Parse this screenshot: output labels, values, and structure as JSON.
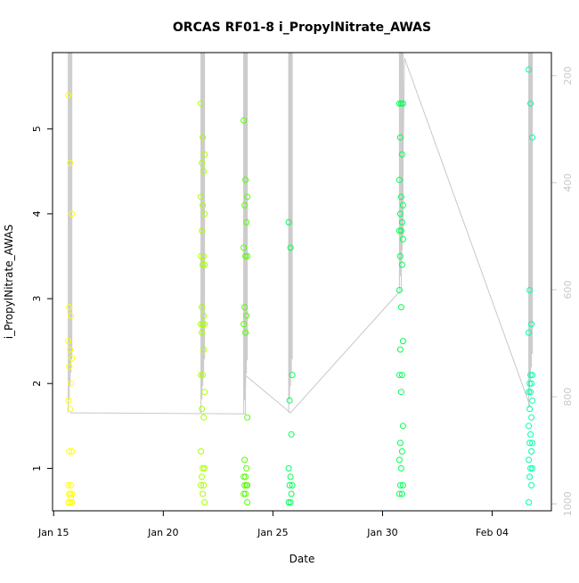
{
  "chart_data": {
    "type": "scatter",
    "title": "ORCAS RF01-8 i_PropylNitrate_AWAS",
    "xlabel": "Date",
    "ylabel": "i_PropylNitrate_AWAS",
    "x_ticks": [
      "Jan 15",
      "Jan 20",
      "Jan 25",
      "Jan 30",
      "Feb 04"
    ],
    "x_tick_days": [
      15,
      20,
      25,
      30,
      35
    ],
    "xlim": [
      14.95,
      37.7
    ],
    "ylim": [
      0.5,
      5.9
    ],
    "y_ticks": [
      1,
      2,
      3,
      4,
      5
    ],
    "y2_ticks": [
      200,
      400,
      600,
      800,
      1000
    ],
    "y2lim": [
      1013,
      157
    ],
    "y2_label": "",
    "grid": false,
    "point_colors": [
      "#ffff00",
      "#aaff00",
      "#55ff00",
      "#00ff55",
      "#00ffaa"
    ],
    "line_color": "#c8c8c8",
    "series": [
      {
        "date": "Jan 15",
        "day": 15.75,
        "color": "#ffff00",
        "values": [
          5.4,
          4.6,
          4.0,
          2.9,
          2.8,
          2.5,
          2.4,
          2.3,
          2.2,
          2.0,
          1.8,
          1.7,
          1.2,
          1.2,
          0.8,
          0.8,
          0.7,
          0.7,
          0.7,
          0.65,
          0.6,
          0.6,
          0.6
        ]
      },
      {
        "date": "Jan 21",
        "day": 21.8,
        "color": "#aaff00",
        "values": [
          5.3,
          4.9,
          4.7,
          4.6,
          4.5,
          4.2,
          4.1,
          4.0,
          3.8,
          3.5,
          3.5,
          3.4,
          3.4,
          2.9,
          2.8,
          2.7,
          2.7,
          2.7,
          2.6,
          2.4,
          2.1,
          2.1,
          1.9,
          1.7,
          1.6,
          1.2,
          1.0,
          1.0,
          0.9,
          0.8,
          0.8,
          0.7,
          0.6
        ]
      },
      {
        "date": "Jan 23",
        "day": 23.75,
        "color": "#55ff00",
        "values": [
          5.1,
          4.4,
          4.2,
          4.1,
          3.9,
          3.6,
          3.5,
          3.5,
          2.9,
          2.8,
          2.7,
          2.6,
          1.6,
          1.1,
          1.0,
          0.9,
          0.9,
          0.8,
          0.8,
          0.8,
          0.7,
          0.7,
          0.6
        ]
      },
      {
        "date": "Jan 25",
        "day": 25.8,
        "color": "#00ff55",
        "values": [
          3.9,
          3.6,
          2.1,
          1.8,
          1.4,
          1.0,
          0.9,
          0.8,
          0.8,
          0.7,
          0.6,
          0.6
        ]
      },
      {
        "date": "Jan 30",
        "day": 30.85,
        "color": "#00ff55",
        "values": [
          5.3,
          5.3,
          5.3,
          4.9,
          4.7,
          4.4,
          4.2,
          4.1,
          4.0,
          3.9,
          3.8,
          3.8,
          3.7,
          3.5,
          3.4,
          3.1,
          2.9,
          2.5,
          2.4,
          2.1,
          2.1,
          1.9,
          1.5,
          1.3,
          1.2,
          1.1,
          1.0,
          0.8,
          0.8,
          0.7,
          0.7
        ]
      },
      {
        "date": "Feb 05",
        "day": 36.75,
        "color": "#00ffaa",
        "values": [
          5.7,
          5.3,
          4.9,
          3.1,
          2.7,
          2.6,
          2.1,
          2.1,
          2.0,
          2.0,
          1.9,
          1.9,
          1.8,
          1.7,
          1.6,
          1.5,
          1.4,
          1.3,
          1.3,
          1.2,
          1.1,
          1.0,
          1.0,
          0.9,
          0.8,
          0.6
        ]
      }
    ],
    "flight_track": {
      "axis": "y2",
      "points": [
        [
          15.75,
          830
        ],
        [
          23.75,
          832
        ],
        [
          23.75,
          760
        ],
        [
          25.8,
          830
        ],
        [
          30.85,
          600
        ],
        [
          31.0,
          167
        ],
        [
          36.75,
          820
        ]
      ]
    },
    "flight_columns": [
      {
        "day": 15.75,
        "y2_range": [
          157,
          830
        ]
      },
      {
        "day": 21.8,
        "y2_range": [
          157,
          830
        ]
      },
      {
        "day": 23.75,
        "y2_range": [
          157,
          832
        ]
      },
      {
        "day": 25.8,
        "y2_range": [
          157,
          830
        ]
      },
      {
        "day": 30.85,
        "y2_range": [
          157,
          600
        ]
      },
      {
        "day": 36.75,
        "y2_range": [
          157,
          820
        ]
      }
    ]
  }
}
